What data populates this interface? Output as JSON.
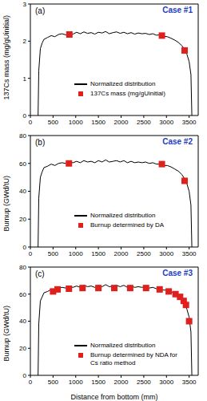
{
  "chart_data": [
    {
      "type": "line",
      "title": "Case #1",
      "annotations": [
        "(a)"
      ],
      "ylabel": "137Cs mass (mg/gUinitial)",
      "xlim": [
        0,
        3700
      ],
      "xticks": [
        0,
        500,
        1000,
        1500,
        2000,
        2500,
        3000,
        3500
      ],
      "ylim": [
        0,
        3
      ],
      "yticks": [
        0,
        1,
        2,
        3
      ],
      "series": [
        {
          "name": "Normalized distribution",
          "type": "line",
          "color": "#000000",
          "x": [
            170,
            185,
            220,
            260,
            300,
            380,
            460,
            540,
            620,
            700,
            780,
            860,
            940,
            1020,
            1100,
            1180,
            1260,
            1340,
            1420,
            1500,
            1580,
            1660,
            1740,
            1820,
            1900,
            1980,
            2060,
            2140,
            2220,
            2300,
            2380,
            2460,
            2540,
            2620,
            2700,
            2780,
            2860,
            2940,
            3020,
            3100,
            3180,
            3260,
            3340,
            3400,
            3450,
            3500,
            3540,
            3560
          ],
          "values": [
            0,
            1.2,
            1.8,
            1.95,
            2.05,
            2.1,
            2.15,
            2.12,
            2.18,
            2.2,
            2.17,
            2.22,
            2.19,
            2.24,
            2.2,
            2.25,
            2.21,
            2.23,
            2.19,
            2.24,
            2.22,
            2.26,
            2.2,
            2.23,
            2.25,
            2.21,
            2.24,
            2.2,
            2.23,
            2.19,
            2.22,
            2.2,
            2.21,
            2.18,
            2.2,
            2.16,
            2.17,
            2.13,
            2.12,
            2.08,
            2.03,
            1.97,
            1.88,
            1.78,
            1.65,
            1.45,
            1.1,
            0
          ]
        },
        {
          "name": "137Cs mass (mg/gUinitial)",
          "type": "scatter",
          "marker": "square",
          "color": "#e0201c",
          "x": [
            860,
            2900,
            3400
          ],
          "values": [
            2.18,
            2.15,
            1.75
          ]
        }
      ]
    },
    {
      "type": "line",
      "title": "Case #2",
      "annotations": [
        "(b)"
      ],
      "ylabel": "Burnup (GWd/tU)",
      "xlim": [
        0,
        3700
      ],
      "xticks": [
        0,
        500,
        1000,
        1500,
        2000,
        2500,
        3000,
        3500
      ],
      "ylim": [
        0,
        80
      ],
      "yticks": [
        0,
        20,
        40,
        60,
        80
      ],
      "series": [
        {
          "name": "Normalized distribution",
          "type": "line",
          "color": "#000000",
          "x": [
            170,
            185,
            220,
            260,
            300,
            380,
            460,
            540,
            620,
            700,
            780,
            860,
            940,
            1020,
            1100,
            1180,
            1260,
            1340,
            1420,
            1500,
            1580,
            1660,
            1740,
            1820,
            1900,
            1980,
            2060,
            2140,
            2220,
            2300,
            2380,
            2460,
            2540,
            2620,
            2700,
            2780,
            2860,
            2940,
            3020,
            3100,
            3180,
            3260,
            3340,
            3400,
            3450,
            3500,
            3540,
            3560
          ],
          "values": [
            0,
            35,
            50,
            54,
            57,
            58,
            59.5,
            58.5,
            60,
            60.5,
            60,
            61,
            60.5,
            61.5,
            60.5,
            62,
            61,
            61.5,
            60.5,
            62,
            61,
            62.5,
            61,
            61.5,
            62,
            61,
            62,
            60.5,
            61.5,
            60.5,
            61,
            60.5,
            61,
            60,
            60.5,
            59.5,
            59.5,
            58.5,
            58.5,
            57.5,
            56,
            54.5,
            52,
            49,
            45.5,
            40,
            30,
            0
          ]
        },
        {
          "name": "Burnup determined by DA",
          "type": "scatter",
          "marker": "square",
          "color": "#e0201c",
          "x": [
            850,
            2900,
            3400
          ],
          "values": [
            60,
            59.5,
            47.5
          ]
        }
      ]
    },
    {
      "type": "line",
      "title": "Case #3",
      "annotations": [
        "(c)"
      ],
      "ylabel": "Burnup (GWd/tU)",
      "xlabel": "Distance from bottom (mm)",
      "xlim": [
        0,
        3700
      ],
      "xticks": [
        0,
        500,
        1000,
        1500,
        2000,
        2500,
        3000,
        3500
      ],
      "ylim": [
        0,
        80
      ],
      "yticks": [
        0,
        20,
        40,
        60,
        80
      ],
      "series": [
        {
          "name": "Normalized distribution",
          "type": "line",
          "color": "#000000",
          "x": [
            170,
            185,
            220,
            260,
            300,
            380,
            460,
            540,
            620,
            700,
            780,
            860,
            940,
            1020,
            1100,
            1180,
            1260,
            1340,
            1420,
            1500,
            1580,
            1660,
            1740,
            1820,
            1900,
            1980,
            2060,
            2140,
            2220,
            2300,
            2380,
            2460,
            2540,
            2620,
            2700,
            2780,
            2860,
            2940,
            3020,
            3100,
            3180,
            3260,
            3340,
            3400,
            3450,
            3500,
            3540,
            3560
          ],
          "values": [
            0,
            38,
            55,
            58,
            61,
            62,
            63.5,
            63,
            64.5,
            65,
            64.5,
            65.5,
            65,
            66,
            65,
            66.5,
            65.5,
            66,
            65,
            66.5,
            65.5,
            67,
            65.5,
            66,
            66.5,
            65.5,
            66.5,
            65,
            66,
            65,
            65.5,
            65,
            65.5,
            64.5,
            65,
            64,
            64,
            63,
            63,
            62,
            60.5,
            58.5,
            56,
            52.5,
            49,
            43,
            32,
            0
          ]
        },
        {
          "name": "Burnup determined by NDA for Cs ratio method",
          "type": "scatter",
          "marker": "square",
          "color": "#e0201c",
          "x": [
            500,
            600,
            850,
            1150,
            1500,
            1850,
            2200,
            2550,
            2850,
            3050,
            3200,
            3300,
            3380,
            3430,
            3500
          ],
          "values": [
            62,
            63.5,
            64,
            64.5,
            64.5,
            64.5,
            64.5,
            64.5,
            63.5,
            62,
            60,
            58,
            55,
            52,
            40
          ]
        }
      ]
    }
  ]
}
